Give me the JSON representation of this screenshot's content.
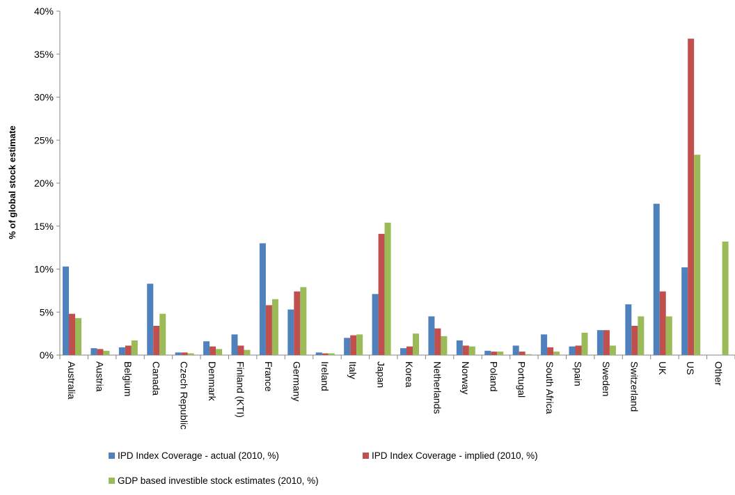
{
  "chart_data": {
    "type": "bar",
    "title": "",
    "xlabel": "",
    "ylabel": "% of global stock estimate",
    "ylim": [
      0,
      40
    ],
    "yticks": [
      "0%",
      "5%",
      "10%",
      "15%",
      "20%",
      "25%",
      "30%",
      "35%",
      "40%"
    ],
    "grid": false,
    "legend_position": "bottom",
    "categories": [
      "Australia",
      "Austria",
      "Belgium",
      "Canada",
      "Czech Republic",
      "Denmark",
      "Finland (KTI)",
      "France",
      "Germany",
      "Ireland",
      "Italy",
      "Japan",
      "Korea",
      "Netherlands",
      "Norway",
      "Poland",
      "Portugal",
      "South Africa",
      "Spain",
      "Sweden",
      "Switzerland",
      "UK",
      "US",
      "Other"
    ],
    "series": [
      {
        "name": "IPD Index Coverage - actual (2010, %)",
        "color": "#4f81bd",
        "values": [
          10.3,
          0.8,
          0.9,
          8.3,
          0.3,
          1.6,
          2.4,
          13.0,
          5.3,
          0.3,
          2.0,
          7.1,
          0.8,
          4.5,
          1.7,
          0.5,
          1.1,
          2.4,
          1.0,
          2.9,
          5.9,
          17.6,
          10.2,
          0
        ]
      },
      {
        "name": "IPD Index Coverage - implied (2010, %)",
        "color": "#c0504d",
        "values": [
          4.8,
          0.7,
          1.1,
          3.4,
          0.3,
          1.0,
          1.1,
          5.8,
          7.4,
          0.2,
          2.3,
          14.1,
          1.0,
          3.1,
          1.1,
          0.4,
          0.4,
          0.9,
          1.1,
          2.9,
          3.4,
          7.4,
          36.8,
          0
        ]
      },
      {
        "name": "GDP based investible stock estimates (2010, %)",
        "color": "#9bbb59",
        "values": [
          4.3,
          0.5,
          1.7,
          4.8,
          0.2,
          0.7,
          0.6,
          6.5,
          7.9,
          0.2,
          2.4,
          15.4,
          2.5,
          2.2,
          1.0,
          0.4,
          0.1,
          0.4,
          2.6,
          1.1,
          4.5,
          4.5,
          23.3,
          13.2
        ]
      }
    ]
  }
}
